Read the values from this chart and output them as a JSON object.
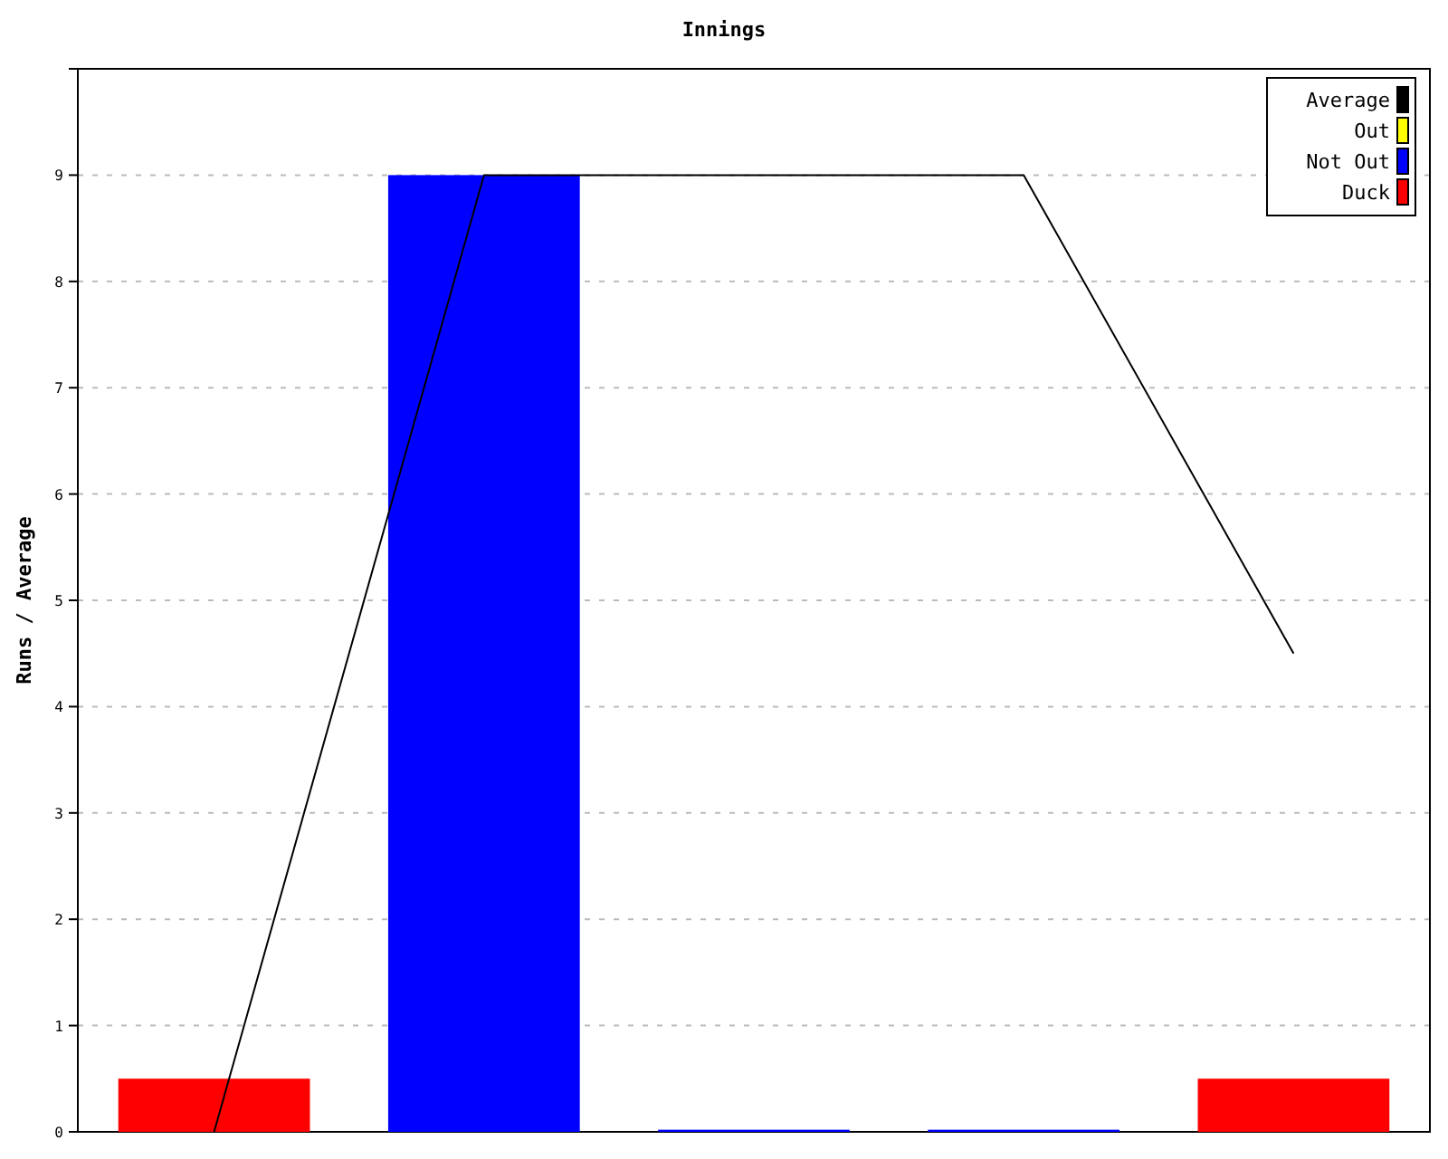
{
  "chart_data": {
    "type": "bar",
    "title": "Innings",
    "ylabel": "Runs / Average",
    "categories": [
      null,
      null,
      null,
      null,
      null
    ],
    "ylim": [
      0,
      10
    ],
    "yticks": [
      0,
      1,
      2,
      3,
      4,
      5,
      6,
      7,
      8,
      9,
      {
        "value": 10,
        "label": null
      }
    ],
    "grid": "y",
    "legend": "top right",
    "series": [
      {
        "name": "Average",
        "type": "line",
        "color": "#000000",
        "values": [
          0,
          9,
          9,
          9,
          4.5
        ]
      },
      {
        "name": "Out",
        "color": "#ffff00",
        "values": [
          null,
          null,
          null,
          null,
          null
        ]
      },
      {
        "name": "Not Out",
        "color": "#0000ff",
        "values": [
          null,
          9,
          0.02,
          0.02,
          null
        ]
      },
      {
        "name": "Duck",
        "color": "#ff0000",
        "values": [
          0.5,
          null,
          null,
          null,
          0.5
        ]
      }
    ]
  }
}
